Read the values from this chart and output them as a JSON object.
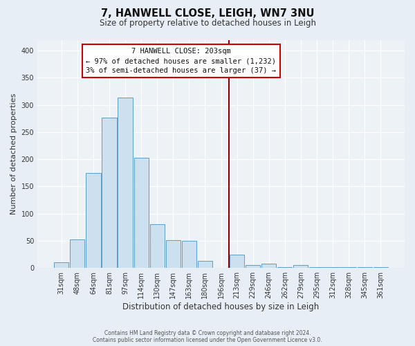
{
  "title": "7, HANWELL CLOSE, LEIGH, WN7 3NU",
  "subtitle": "Size of property relative to detached houses in Leigh",
  "xlabel": "Distribution of detached houses by size in Leigh",
  "ylabel": "Number of detached properties",
  "bar_labels": [
    "31sqm",
    "48sqm",
    "64sqm",
    "81sqm",
    "97sqm",
    "114sqm",
    "130sqm",
    "147sqm",
    "163sqm",
    "180sqm",
    "196sqm",
    "213sqm",
    "229sqm",
    "246sqm",
    "262sqm",
    "279sqm",
    "295sqm",
    "312sqm",
    "328sqm",
    "345sqm",
    "361sqm"
  ],
  "bar_values": [
    10,
    53,
    175,
    277,
    313,
    203,
    80,
    51,
    50,
    13,
    0,
    25,
    5,
    8,
    2,
    5,
    2,
    2,
    1,
    1,
    1
  ],
  "bar_color": "#cce0f0",
  "bar_edge_color": "#5b9ec9",
  "vline_x_idx": 11,
  "vline_color": "#8b0000",
  "annotation_title": "7 HANWELL CLOSE: 203sqm",
  "annotation_line1": "← 97% of detached houses are smaller (1,232)",
  "annotation_line2": "3% of semi-detached houses are larger (37) →",
  "annotation_box_facecolor": "#ffffff",
  "annotation_box_edgecolor": "#cc0000",
  "ylim": [
    0,
    420
  ],
  "yticks": [
    0,
    50,
    100,
    150,
    200,
    250,
    300,
    350,
    400
  ],
  "footer1": "Contains HM Land Registry data © Crown copyright and database right 2024.",
  "footer2": "Contains public sector information licensed under the Open Government Licence v3.0.",
  "bg_color": "#e8eef5",
  "plot_bg_color": "#edf2f7",
  "title_fontsize": 10.5,
  "subtitle_fontsize": 8.5,
  "ylabel_fontsize": 8,
  "xlabel_fontsize": 8.5,
  "tick_fontsize": 7,
  "footer_fontsize": 5.5
}
